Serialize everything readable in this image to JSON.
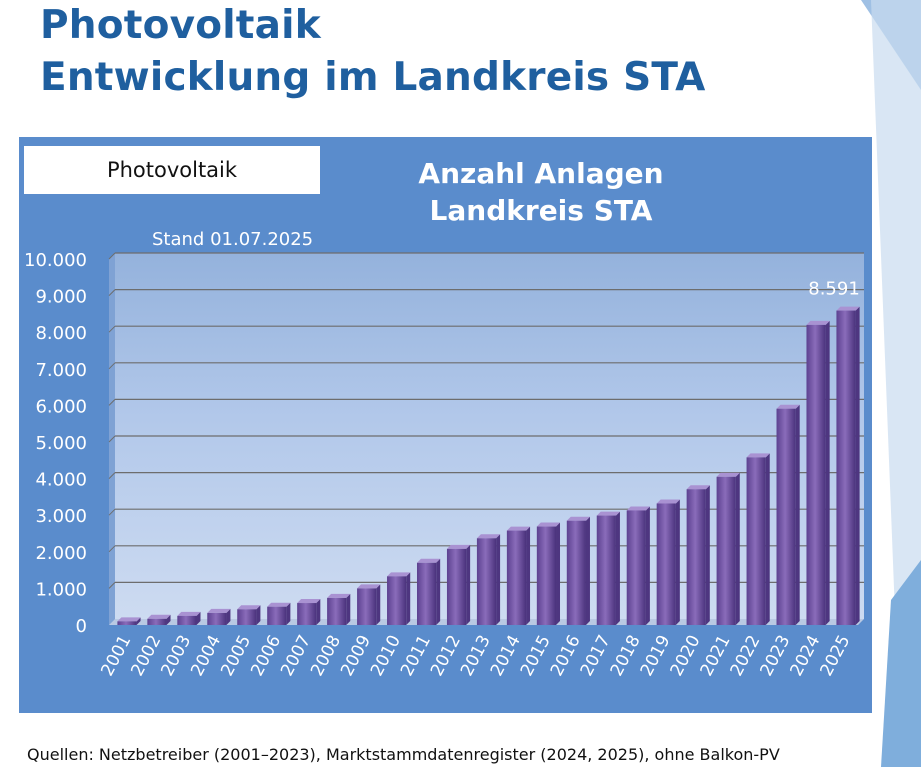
{
  "slide": {
    "title_line1": "Photovoltaik",
    "title_line2": "Entwicklung im Landkreis STA",
    "source_note": "Quellen: Netzbetreiber (2001–2023), Marktstammdatenregister (2024, 2025), ohne Balkon-PV"
  },
  "panel": {
    "label": "Photovoltaik",
    "stand": "Stand 01.07.2025"
  },
  "colors": {
    "title": "#1f5f9f",
    "panel_bg": "#5a8ccc",
    "bar": "#7a5aa8",
    "bar_dark": "#4e3680",
    "bar_light": "#a992d2"
  },
  "chart_data": {
    "type": "bar",
    "title_line1": "Anzahl Anlagen",
    "title_line2": "Landkreis STA",
    "categories": [
      "2001",
      "2002",
      "2003",
      "2004",
      "2005",
      "2006",
      "2007",
      "2008",
      "2009",
      "2010",
      "2011",
      "2012",
      "2013",
      "2014",
      "2015",
      "2016",
      "2017",
      "2018",
      "2019",
      "2020",
      "2021",
      "2022",
      "2023",
      "2024",
      "2025"
    ],
    "values": [
      100,
      170,
      250,
      330,
      430,
      500,
      600,
      740,
      1000,
      1330,
      1700,
      2080,
      2370,
      2580,
      2690,
      2850,
      2990,
      3130,
      3320,
      3710,
      4050,
      4580,
      5910,
      8200,
      8591
    ],
    "ylim": [
      0,
      10000
    ],
    "yticks": [
      {
        "value": 0,
        "label": "0"
      },
      {
        "value": 1000,
        "label": "1.000"
      },
      {
        "value": 2000,
        "label": "2.000"
      },
      {
        "value": 3000,
        "label": "3.000"
      },
      {
        "value": 4000,
        "label": "4.000"
      },
      {
        "value": 5000,
        "label": "5.000"
      },
      {
        "value": 6000,
        "label": "6.000"
      },
      {
        "value": 7000,
        "label": "7.000"
      },
      {
        "value": 8000,
        "label": "8.000"
      },
      {
        "value": 9000,
        "label": "9.000"
      },
      {
        "value": 10000,
        "label": "10.000"
      }
    ],
    "data_label": {
      "index": 24,
      "text": "8.591"
    },
    "grid": true,
    "legend": "none"
  }
}
